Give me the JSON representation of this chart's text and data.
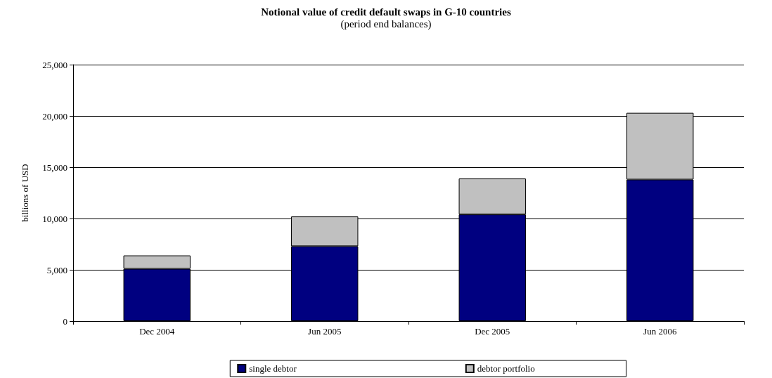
{
  "chart_data": {
    "type": "bar",
    "title": "Notional value of credit default swaps in G-10 countries",
    "subtitle": "(period end balances)",
    "ylabel": "billions of USD",
    "categories": [
      "Dec 2004",
      "Jun 2005",
      "Dec 2005",
      "Jun 2006"
    ],
    "series": [
      {
        "name": "single debtor",
        "color": "#000080",
        "values": [
          5100,
          7300,
          10400,
          13800
        ]
      },
      {
        "name": "debtor portfolio",
        "color": "#c0c0c0",
        "values": [
          1300,
          2900,
          3500,
          6500
        ]
      }
    ],
    "stacked": true,
    "ylim": [
      0,
      25000
    ],
    "yticks": [
      0,
      {
        "value": 5000,
        "label": "5,000"
      },
      {
        "value": 10000,
        "label": "10,000"
      },
      {
        "value": 15000,
        "label": "15,000"
      },
      {
        "value": 20000,
        "label": "20,000"
      },
      {
        "value": 25000,
        "label": "25,000"
      }
    ],
    "grid": "y",
    "legend": "bottom"
  }
}
